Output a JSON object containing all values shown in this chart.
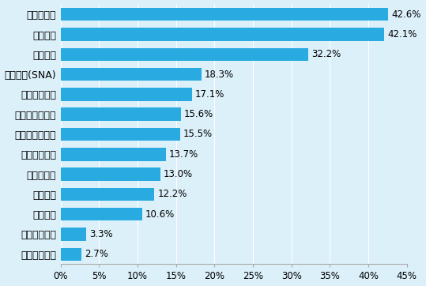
{
  "categories": [
    "製造品出荷額",
    "粗付加価値額",
    "常住人口",
    "昼間人口",
    "小売販売額",
    "従業地就業者",
    "課税対象所得額",
    "事業所従業者数",
    "法人企業所得",
    "総生産額(SNA)",
    "預貯金額",
    "貸出金額",
    "卸売販売額"
  ],
  "values": [
    2.7,
    3.3,
    10.6,
    12.2,
    13.0,
    13.7,
    15.5,
    15.6,
    17.1,
    18.3,
    32.2,
    42.1,
    42.6
  ],
  "bar_color": "#29ABE2",
  "background_color": "#DCF0FA",
  "plot_bg_color": "#DCF0FA",
  "xlim": [
    0,
    45
  ],
  "xtick_values": [
    0,
    5,
    10,
    15,
    20,
    25,
    30,
    35,
    40,
    45
  ],
  "bar_height": 0.65,
  "label_fontsize": 9.0,
  "value_fontsize": 8.5,
  "tick_fontsize": 8.5,
  "grid_color": "#BBDDEE",
  "spine_color": "#AAAAAA"
}
